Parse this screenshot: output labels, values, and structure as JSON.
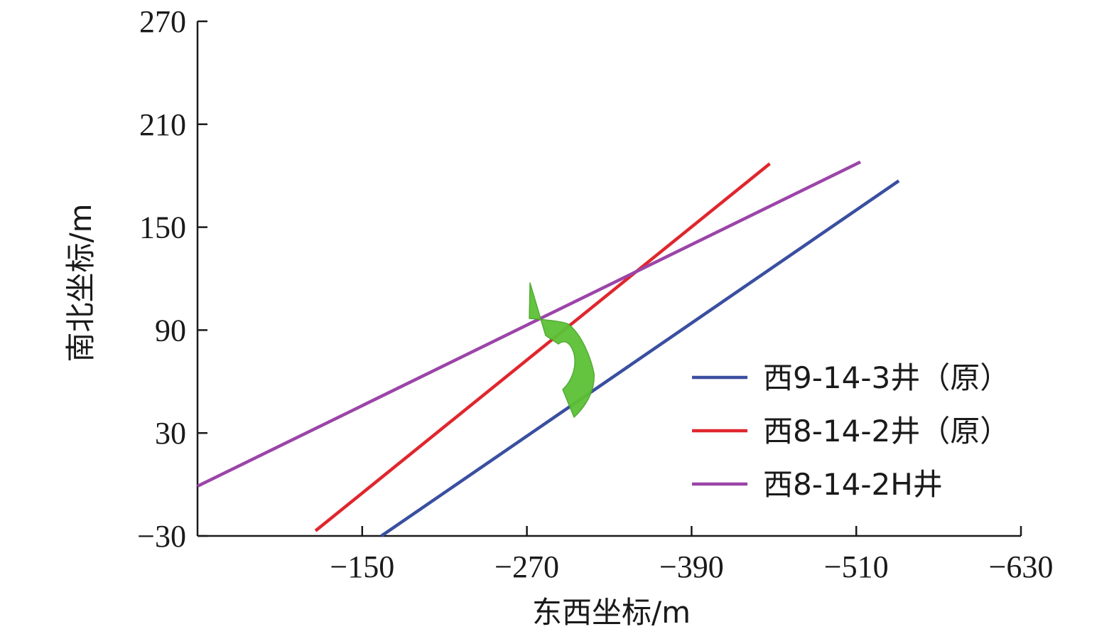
{
  "chart_data": {
    "type": "line",
    "xlabel": "东西坐标/m",
    "ylabel": "南北坐标/m",
    "xlim": [
      -30,
      -630
    ],
    "ylim": [
      -30,
      270
    ],
    "x_ticks": [
      -150,
      -270,
      -390,
      -510,
      -630
    ],
    "y_ticks": [
      -30,
      30,
      90,
      150,
      210,
      270
    ],
    "x_tick_labels": [
      "−150",
      "−270",
      "−390",
      "−510",
      "−630"
    ],
    "y_tick_labels": [
      "−30",
      "30",
      "90",
      "150",
      "210",
      "270"
    ],
    "legend_position": "bottom-right",
    "series": [
      {
        "name": "西9-14-3井（原）",
        "color": "#3a4fa0",
        "x": [
          -164,
          -541
        ],
        "y": [
          -30,
          177
        ]
      },
      {
        "name": "西8-14-2井（原）",
        "color": "#e0262e",
        "x": [
          -116,
          -447
        ],
        "y": [
          -27,
          187
        ]
      },
      {
        "name": "西8-14-2H井",
        "color": "#9b45a8",
        "x": [
          -30,
          -513
        ],
        "y": [
          -1,
          188
        ]
      }
    ],
    "annotations": [
      {
        "type": "curved-arrow",
        "color": "#5cc135",
        "direction": "from red/purple crossing toward blue line"
      }
    ]
  }
}
